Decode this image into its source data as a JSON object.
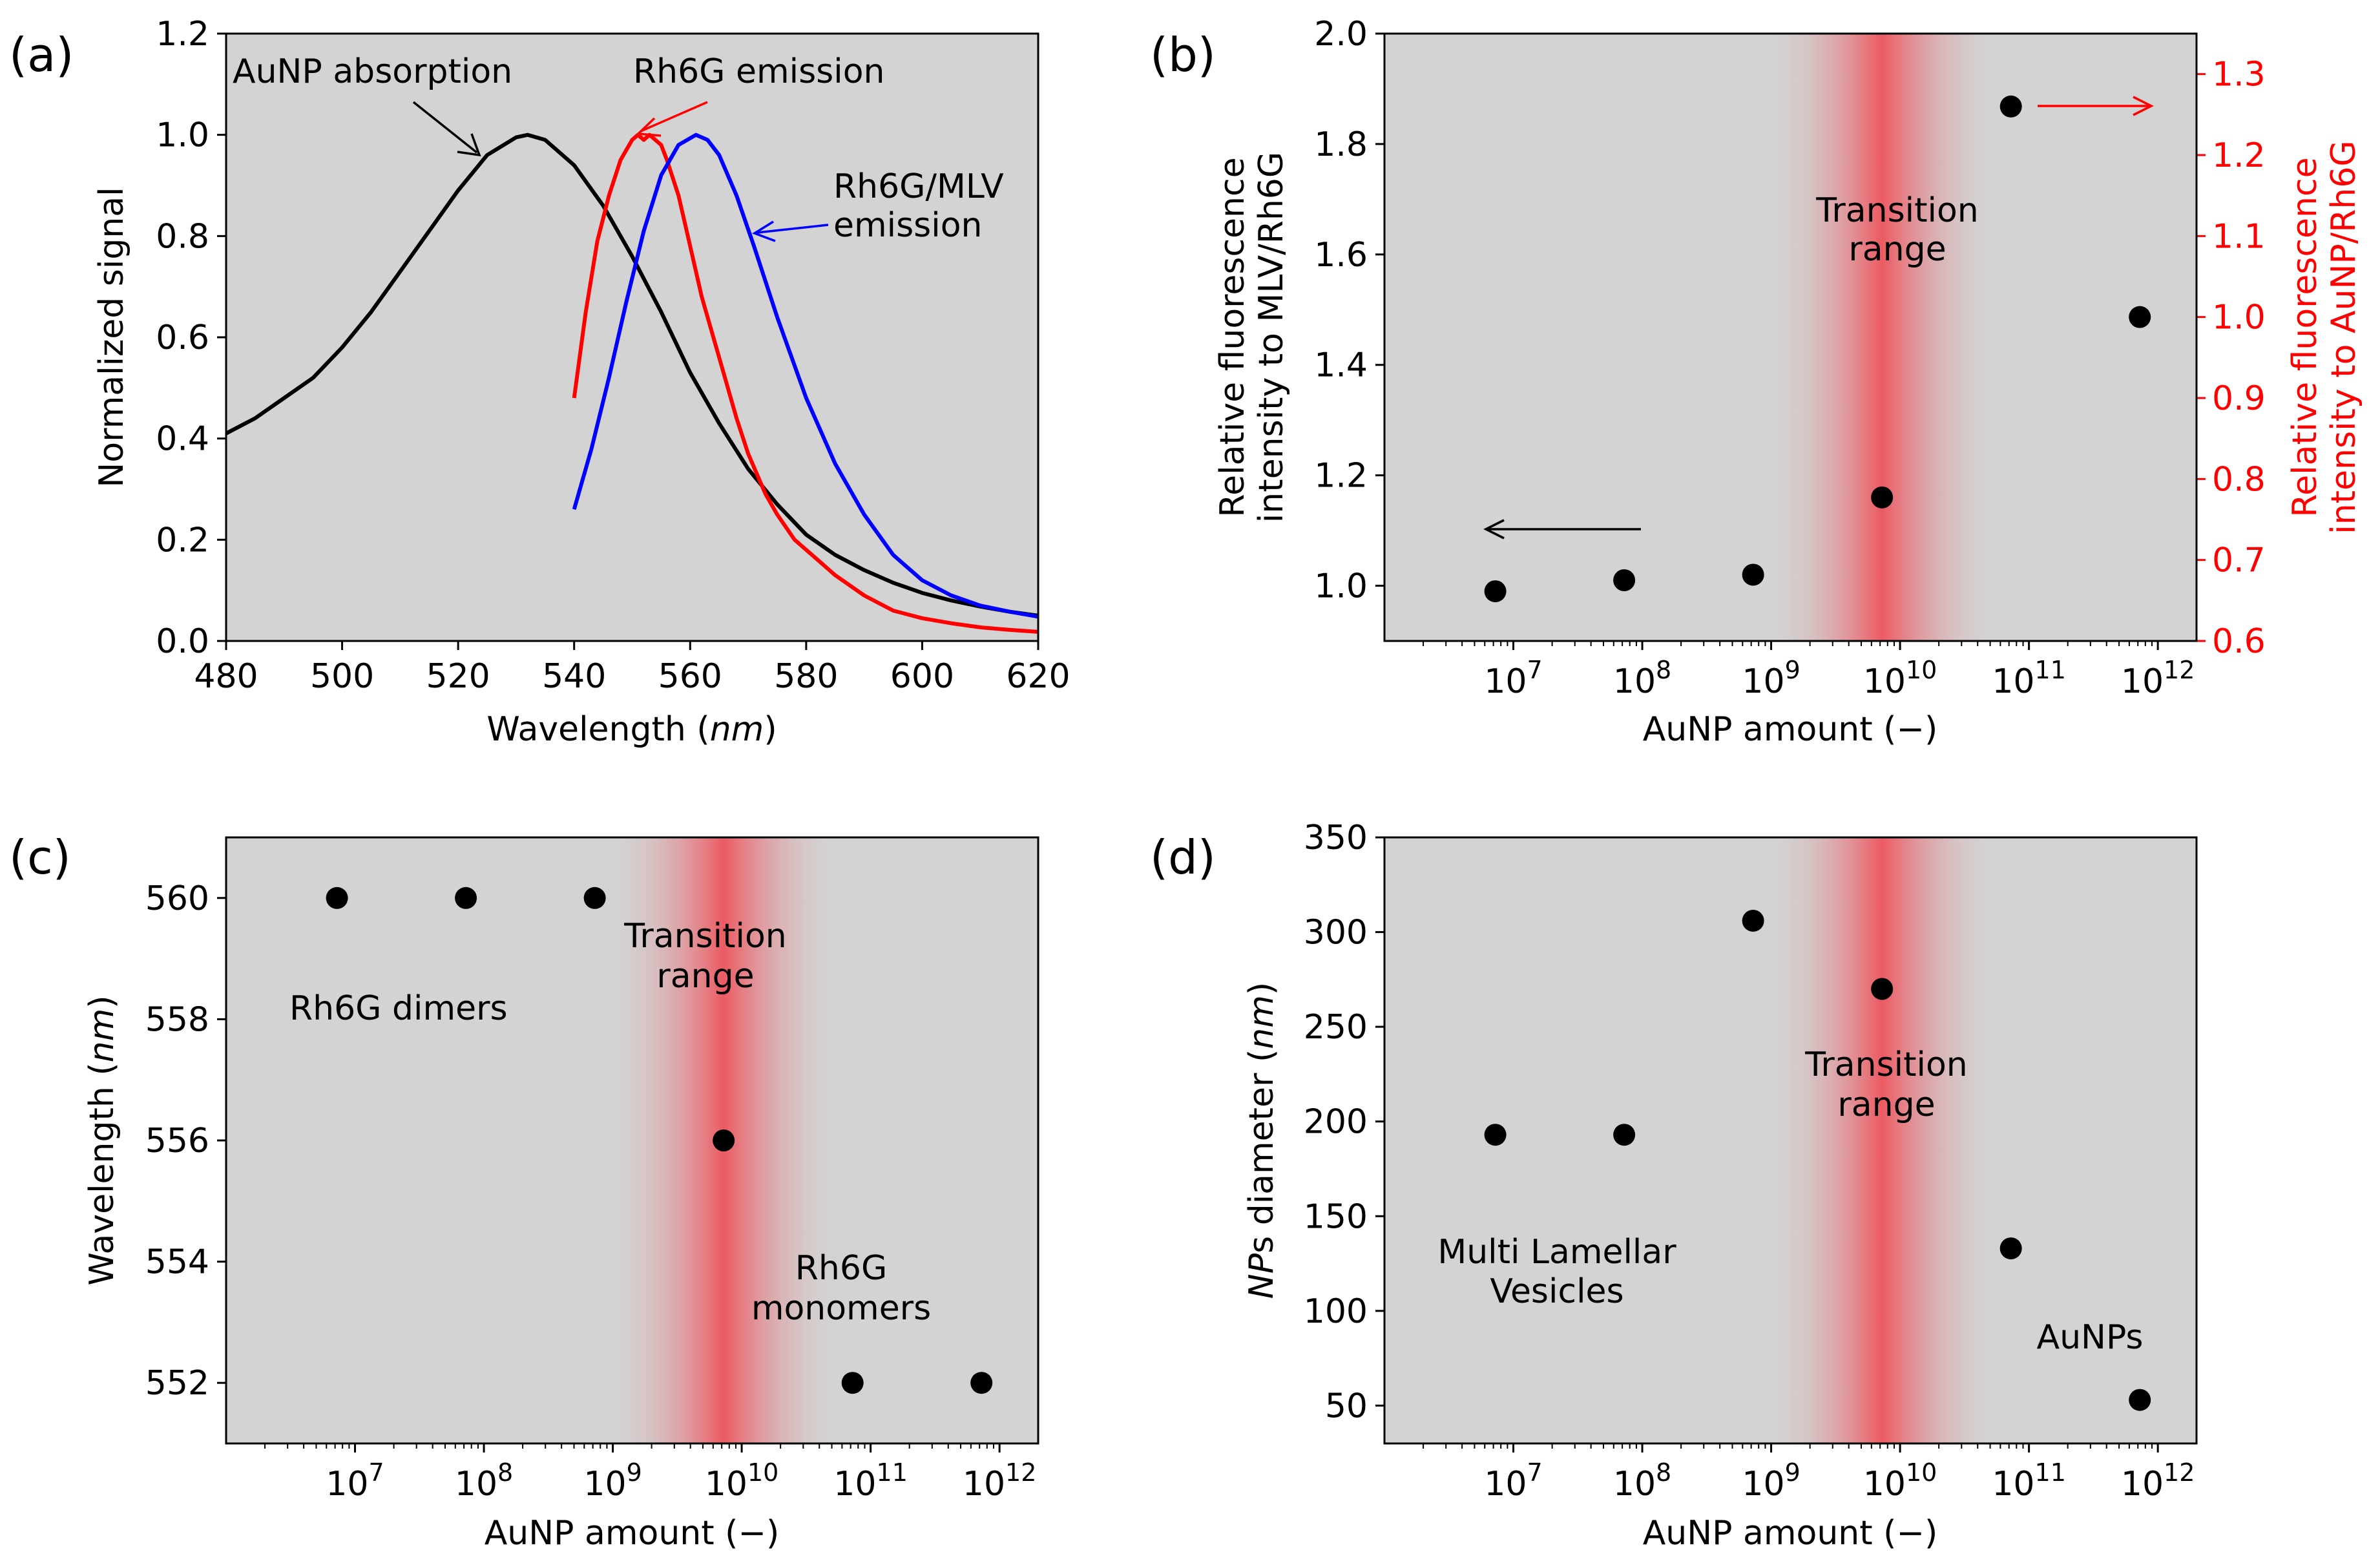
{
  "chart_data": [
    {
      "panel": "(a)",
      "type": "line",
      "xlabel_prefix": "Wavelength (",
      "xlabel_unit": "nm",
      "xlabel_suffix": ")",
      "ylabel": "Normalized signal",
      "xlim": [
        480,
        620
      ],
      "ylim": [
        0.0,
        1.2
      ],
      "xticks": [
        480,
        500,
        520,
        540,
        560,
        580,
        600,
        620
      ],
      "yticks": [
        "0.0",
        "0.2",
        "0.4",
        "0.6",
        "0.8",
        "1.0",
        "1.2"
      ],
      "series": [
        {
          "name": "AuNP absorption",
          "color": "#000000",
          "x": [
            480,
            485,
            490,
            495,
            500,
            505,
            510,
            515,
            520,
            525,
            530,
            532,
            535,
            540,
            545,
            550,
            555,
            560,
            565,
            570,
            575,
            580,
            585,
            590,
            595,
            600,
            605,
            610,
            615,
            620
          ],
          "y": [
            0.41,
            0.44,
            0.48,
            0.52,
            0.58,
            0.65,
            0.73,
            0.81,
            0.89,
            0.96,
            0.995,
            1.0,
            0.99,
            0.94,
            0.86,
            0.76,
            0.65,
            0.53,
            0.43,
            0.34,
            0.27,
            0.21,
            0.17,
            0.14,
            0.115,
            0.095,
            0.08,
            0.068,
            0.058,
            0.05
          ]
        },
        {
          "name": "Rh6G emission",
          "color": "#ff0000",
          "x": [
            540,
            542,
            544,
            546,
            548,
            550,
            551,
            552,
            553,
            554,
            555,
            556,
            558,
            560,
            562,
            565,
            568,
            570,
            573,
            575,
            578,
            580,
            585,
            590,
            595,
            600,
            605,
            610,
            615,
            620
          ],
          "y": [
            0.48,
            0.65,
            0.79,
            0.88,
            0.95,
            0.99,
            1.0,
            0.99,
            1.0,
            0.99,
            0.98,
            0.95,
            0.88,
            0.78,
            0.68,
            0.56,
            0.44,
            0.37,
            0.29,
            0.25,
            0.2,
            0.18,
            0.13,
            0.09,
            0.06,
            0.045,
            0.035,
            0.027,
            0.022,
            0.018
          ]
        },
        {
          "name": "Rh6G/MLV emission",
          "color": "#0000ff",
          "x": [
            540,
            543,
            546,
            549,
            552,
            555,
            558,
            561,
            563,
            565,
            568,
            571,
            575,
            580,
            585,
            590,
            595,
            600,
            605,
            610,
            615,
            620
          ],
          "y": [
            0.26,
            0.38,
            0.52,
            0.67,
            0.81,
            0.92,
            0.98,
            1.0,
            0.99,
            0.96,
            0.88,
            0.78,
            0.64,
            0.48,
            0.35,
            0.25,
            0.17,
            0.12,
            0.09,
            0.07,
            0.058,
            0.048
          ]
        }
      ],
      "annotations": {
        "absorption": "AuNP absorption",
        "rh6g": "Rh6G emission",
        "mlv_line1": "Rh6G/MLV",
        "mlv_line2": "emission"
      }
    },
    {
      "panel": "(b)",
      "type": "scatter",
      "xscale": "log",
      "xlabel": "AuNP amount (−)",
      "ylabel_line1": "Relative fluorescence",
      "ylabel_line2": "intensity to MLV/Rh6G",
      "ylabel_right_line1": "Relative fluorescence",
      "ylabel_right_line2": "intensity to AuNP/Rh6G",
      "xlim_exp": [
        6.0,
        12.3
      ],
      "ylim": [
        0.9,
        2.0
      ],
      "ylim_right": [
        0.6,
        1.35
      ],
      "xtick_exps": [
        7,
        8,
        9,
        10,
        11,
        12
      ],
      "yticks": [
        "1.0",
        "1.2",
        "1.4",
        "1.6",
        "1.8",
        "2.0"
      ],
      "yticks_right": [
        "0.6",
        "0.7",
        "0.8",
        "0.9",
        "1.0",
        "1.1",
        "1.2",
        "1.3"
      ],
      "points_left": [
        [
          6.86,
          0.99
        ],
        [
          7.86,
          1.01
        ],
        [
          8.86,
          1.02
        ],
        [
          9.86,
          1.16
        ]
      ],
      "points_right": [
        [
          10.86,
          1.26
        ],
        [
          11.86,
          1.0
        ]
      ],
      "transition_center_exp": 9.86,
      "annotation_line1": "Transition",
      "annotation_line2": "range"
    },
    {
      "panel": "(c)",
      "type": "scatter",
      "xscale": "log",
      "xlabel": "AuNP amount (−)",
      "ylabel_prefix": "Wavelength (",
      "ylabel_unit": "nm",
      "ylabel_suffix": ")",
      "xlim_exp": [
        6.0,
        12.3
      ],
      "ylim": [
        551.0,
        561.0
      ],
      "xtick_exps": [
        7,
        8,
        9,
        10,
        11,
        12
      ],
      "yticks": [
        "552",
        "554",
        "556",
        "558",
        "560"
      ],
      "points": [
        [
          6.86,
          560
        ],
        [
          7.86,
          560
        ],
        [
          8.86,
          560
        ],
        [
          9.86,
          556
        ],
        [
          10.86,
          552
        ],
        [
          11.86,
          552
        ]
      ],
      "transition_center_exp": 9.86,
      "annotations": {
        "dimers": "Rh6G dimers",
        "transition_line1": "Transition",
        "transition_line2": "range",
        "monomers_line1": "Rh6G",
        "monomers_line2": "monomers"
      }
    },
    {
      "panel": "(d)",
      "type": "scatter",
      "xscale": "log",
      "xlabel": "AuNP amount (−)",
      "ylabel_unit": "NP",
      "ylabel_suffix": "s diameter (",
      "ylabel_unit2": "nm",
      "ylabel_end": ")",
      "xlim_exp": [
        6.0,
        12.3
      ],
      "ylim": [
        30,
        350
      ],
      "xtick_exps": [
        7,
        8,
        9,
        10,
        11,
        12
      ],
      "yticks": [
        "50",
        "100",
        "150",
        "200",
        "250",
        "300",
        "350"
      ],
      "points": [
        [
          6.86,
          193
        ],
        [
          7.86,
          193
        ],
        [
          8.86,
          306
        ],
        [
          9.86,
          270
        ],
        [
          10.86,
          133
        ],
        [
          11.86,
          53
        ]
      ],
      "transition_center_exp": 9.86,
      "annotations": {
        "mlv_line1": "Multi Lamellar",
        "mlv_line2": "Vesicles",
        "transition_line1": "Transition",
        "transition_line2": "range",
        "aunps": "AuNPs"
      }
    }
  ]
}
